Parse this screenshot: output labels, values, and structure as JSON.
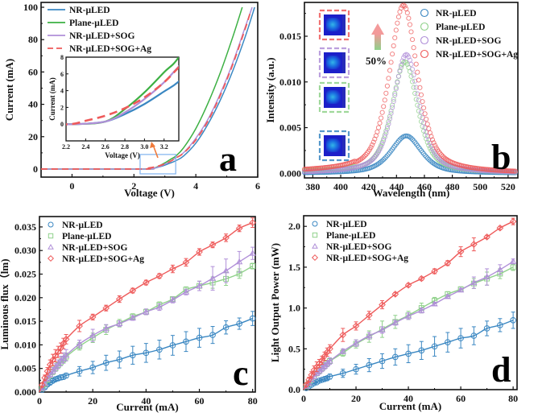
{
  "figure": {
    "panels": [
      "a",
      "b",
      "c",
      "d"
    ]
  },
  "colors": {
    "NR-μLED": "#3a87c2",
    "Plane-μLED": "#3cb043",
    "NR-μLED+SOG": "#b08fd8",
    "NR-μLED+SOG+Ag": "#ee5a5a",
    "Plane-μLED-light": "#8fd18a",
    "highlight_box": "#7fb2ef",
    "arrow": "#f07a3a"
  },
  "chart_data": [
    {
      "panel": "a",
      "type": "line",
      "title": "",
      "xlabel": "Voltage (V)",
      "ylabel": "Current (mA)",
      "xlim": [
        -1,
        6
      ],
      "ylim": [
        -5,
        103
      ],
      "xticks": [
        0,
        2,
        4,
        6
      ],
      "yticks": [
        0,
        20,
        40,
        60,
        80,
        100
      ],
      "legend_position": "top-left",
      "panel_label": "a",
      "series": [
        {
          "name": "NR-μLED",
          "style": "solid",
          "x": [
            -1,
            2.3,
            2.6,
            2.8,
            3.0,
            3.2,
            3.35,
            3.6,
            4.0,
            4.4,
            4.8,
            5.2,
            5.6,
            5.9
          ],
          "y": [
            0,
            0,
            0.3,
            1.2,
            2.4,
            3.9,
            5.1,
            8,
            16,
            28,
            43,
            61,
            82,
            100
          ]
        },
        {
          "name": "Plane-μLED",
          "style": "solid",
          "x": [
            -1,
            2.3,
            2.6,
            2.8,
            3.0,
            3.2,
            3.35,
            3.6,
            4.0,
            4.4,
            4.8,
            5.2,
            5.5
          ],
          "y": [
            0,
            0,
            0.3,
            1.8,
            3.8,
            6.2,
            8,
            13,
            25,
            41,
            60,
            82,
            100
          ]
        },
        {
          "name": "NR-μLED+SOG",
          "style": "solid",
          "x": [
            -1,
            2.3,
            2.6,
            2.8,
            3.0,
            3.2,
            3.35,
            3.6,
            4.0,
            4.4,
            4.8,
            5.2,
            5.6,
            5.82
          ],
          "y": [
            0,
            0,
            0.3,
            1.4,
            3.0,
            5.0,
            6.9,
            10,
            19,
            31,
            47,
            66,
            88,
            100
          ]
        },
        {
          "name": "NR-μLED+SOG+Ag",
          "style": "dashed",
          "x": [
            -1,
            2.25,
            2.4,
            2.6,
            2.8,
            3.0,
            3.2,
            3.35,
            3.6,
            4.0,
            4.4,
            4.8,
            5.2,
            5.6,
            5.78
          ],
          "y": [
            0,
            0,
            0.4,
            1.0,
            1.9,
            3.2,
            5.0,
            6.8,
            9.8,
            18,
            30,
            46,
            65,
            87,
            98
          ]
        }
      ],
      "highlight_box": {
        "x": [
          2.2,
          3.35
        ],
        "y": [
          -2,
          8
        ]
      },
      "inset": {
        "xlabel": "Voltage (V)",
        "ylabel": "Current (mA)",
        "xlim": [
          2.2,
          3.35
        ],
        "ylim": [
          -2,
          8
        ],
        "xticks": [
          2.2,
          2.4,
          2.6,
          2.8,
          3.0,
          3.2
        ],
        "xtick_labels": [
          "2.2",
          "2.4",
          "2.6",
          "2.8",
          "3.0",
          "3.2"
        ],
        "yticks": [
          0,
          2,
          4,
          6,
          8
        ]
      }
    },
    {
      "panel": "b",
      "type": "scatter",
      "title": "",
      "xlabel": "Wavelength (nm)",
      "ylabel": "Intensity (a.u.)",
      "xlim": [
        374,
        527
      ],
      "ylim": [
        -0.0005,
        0.0187
      ],
      "xticks": [
        380,
        400,
        420,
        440,
        460,
        480,
        500,
        520
      ],
      "yticks": [
        0.0,
        0.005,
        0.01,
        0.015
      ],
      "ytick_labels": [
        "0.000",
        "0.005",
        "0.010",
        "0.015"
      ],
      "legend_position": "top-right",
      "panel_label": "b",
      "annotation": "50%",
      "series": [
        {
          "name": "NR-μLED",
          "marker": "circle",
          "peak_nm": 447,
          "peak": 0.0041,
          "fwhm": 26
        },
        {
          "name": "Plane-μLED",
          "marker": "circle",
          "peak_nm": 446,
          "peak": 0.0122,
          "fwhm": 22
        },
        {
          "name": "NR-μLED+SOG",
          "marker": "circle",
          "peak_nm": 447,
          "peak": 0.013,
          "fwhm": 22
        },
        {
          "name": "NR-μLED+SOG+Ag",
          "marker": "circle",
          "peak_nm": 445,
          "peak": 0.0184,
          "fwhm": 24
        }
      ],
      "insets": [
        "NR-μLED+SOG+Ag",
        "NR-μLED+SOG",
        "Plane-μLED",
        "NR-μLED"
      ]
    },
    {
      "panel": "c",
      "type": "scatter",
      "title": "",
      "xlabel": "Current (mA)",
      "ylabel": "Luminous flux（lm)",
      "xlim": [
        0,
        81
      ],
      "ylim": [
        0,
        0.0372
      ],
      "xticks": [
        0,
        20,
        40,
        60,
        80
      ],
      "yticks": [
        0.0,
        0.005,
        0.01,
        0.015,
        0.02,
        0.025,
        0.03,
        0.035
      ],
      "ytick_labels": [
        "0.000",
        "0.005",
        "0.010",
        "0.015",
        "0.020",
        "0.025",
        "0.030",
        "0.035"
      ],
      "legend_position": "top-left",
      "panel_label": "c",
      "x": [
        1,
        2,
        3,
        4,
        5,
        6,
        7,
        8,
        9,
        10,
        15,
        20,
        25,
        30,
        35,
        40,
        45,
        50,
        55,
        60,
        65,
        70,
        75,
        80
      ],
      "series": [
        {
          "name": "NR-μLED",
          "marker": "circle",
          "y": [
            0.0005,
            0.001,
            0.0016,
            0.002,
            0.0024,
            0.0027,
            0.0029,
            0.0031,
            0.0032,
            0.0035,
            0.0044,
            0.0052,
            0.0062,
            0.0069,
            0.0078,
            0.0083,
            0.009,
            0.0099,
            0.0107,
            0.0115,
            0.0121,
            0.0137,
            0.0145,
            0.0156
          ],
          "err": [
            0.0002,
            0.0003,
            0.0003,
            0.0004,
            0.0004,
            0.0004,
            0.0004,
            0.0005,
            0.0005,
            0.0005,
            0.001,
            0.0013,
            0.0016,
            0.0018,
            0.0019,
            0.002,
            0.002,
            0.0021,
            0.0021,
            0.002,
            0.0018,
            0.0014,
            0.0012,
            0.0015
          ]
        },
        {
          "name": "Plane-μLED",
          "marker": "square",
          "y": [
            0.0008,
            0.0017,
            0.0026,
            0.0035,
            0.0043,
            0.005,
            0.0057,
            0.0063,
            0.0069,
            0.0075,
            0.0097,
            0.0115,
            0.0132,
            0.0146,
            0.016,
            0.017,
            0.0185,
            0.0197,
            0.0217,
            0.0225,
            0.0232,
            0.024,
            0.0251,
            0.0267
          ],
          "err": [
            0.0003,
            0.0004,
            0.0005,
            0.0005,
            0.0006,
            0.0006,
            0.0007,
            0.0007,
            0.0007,
            0.0008,
            0.0008,
            0.001,
            0.001,
            0.0008,
            0.0006,
            0.0006,
            0.0006,
            0.0005,
            0.0006,
            0.001,
            0.0012,
            0.0014,
            0.001,
            0.0006
          ]
        },
        {
          "name": "NR-μLED+SOG",
          "marker": "triangle",
          "y": [
            0.0008,
            0.0018,
            0.0028,
            0.0037,
            0.0045,
            0.0052,
            0.0059,
            0.0066,
            0.0072,
            0.0078,
            0.0102,
            0.012,
            0.0135,
            0.0145,
            0.0157,
            0.017,
            0.018,
            0.0195,
            0.0212,
            0.0225,
            0.0241,
            0.0257,
            0.0276,
            0.0294
          ],
          "err": [
            0.0003,
            0.0004,
            0.0005,
            0.0006,
            0.0007,
            0.0008,
            0.0009,
            0.001,
            0.0011,
            0.0012,
            0.0008,
            0.0013,
            0.0008,
            0.0006,
            0.0005,
            0.0006,
            0.0007,
            0.0006,
            0.0006,
            0.001,
            0.0025,
            0.0025,
            0.0022,
            0.0013
          ]
        },
        {
          "name": "NR-μLED+SOG+Ag",
          "marker": "diamond",
          "y": [
            0.0015,
            0.003,
            0.0044,
            0.0058,
            0.0068,
            0.0077,
            0.0085,
            0.0093,
            0.0103,
            0.0112,
            0.014,
            0.0159,
            0.0178,
            0.0197,
            0.0215,
            0.0232,
            0.0246,
            0.0261,
            0.0275,
            0.0297,
            0.0312,
            0.0327,
            0.0347,
            0.0359
          ],
          "err": [
            0.0004,
            0.0006,
            0.0008,
            0.001,
            0.0012,
            0.0013,
            0.0012,
            0.0011,
            0.0011,
            0.001,
            0.0012,
            0.0006,
            0.0006,
            0.0007,
            0.0005,
            0.0005,
            0.0005,
            0.0008,
            0.0008,
            0.0007,
            0.0006,
            0.0008,
            0.0007,
            0.001
          ]
        }
      ]
    },
    {
      "panel": "d",
      "type": "scatter",
      "title": "",
      "xlabel": "Current (mA)",
      "ylabel": "Light Output Power (mW)",
      "xlim": [
        0,
        81.5
      ],
      "ylim": [
        0,
        2.13
      ],
      "xticks": [
        0,
        20,
        40,
        60,
        80
      ],
      "yticks": [
        0.0,
        0.5,
        1.0,
        1.5,
        2.0
      ],
      "ytick_labels": [
        "0.0",
        "0.5",
        "1.0",
        "1.5",
        "2.0"
      ],
      "legend_position": "top-left",
      "panel_label": "d",
      "x": [
        1,
        2,
        3,
        4,
        5,
        6,
        7,
        8,
        9,
        10,
        15,
        20,
        25,
        30,
        35,
        40,
        45,
        50,
        55,
        60,
        65,
        70,
        75,
        80
      ],
      "series": [
        {
          "name": "NR-μLED",
          "marker": "circle",
          "y": [
            0.02,
            0.04,
            0.06,
            0.08,
            0.09,
            0.11,
            0.12,
            0.13,
            0.14,
            0.16,
            0.2,
            0.25,
            0.3,
            0.35,
            0.4,
            0.44,
            0.48,
            0.53,
            0.58,
            0.63,
            0.66,
            0.75,
            0.79,
            0.85
          ],
          "err": [
            0.01,
            0.01,
            0.01,
            0.01,
            0.01,
            0.01,
            0.01,
            0.02,
            0.02,
            0.03,
            0.05,
            0.06,
            0.08,
            0.09,
            0.1,
            0.11,
            0.11,
            0.12,
            0.12,
            0.12,
            0.11,
            0.09,
            0.08,
            0.1
          ]
        },
        {
          "name": "Plane-μLED",
          "marker": "square",
          "y": [
            0.04,
            0.08,
            0.12,
            0.16,
            0.2,
            0.23,
            0.26,
            0.29,
            0.32,
            0.35,
            0.45,
            0.56,
            0.65,
            0.74,
            0.83,
            0.91,
            1.0,
            1.09,
            1.17,
            1.23,
            1.3,
            1.36,
            1.42,
            1.5
          ],
          "err": [
            0.01,
            0.02,
            0.02,
            0.03,
            0.03,
            0.03,
            0.03,
            0.03,
            0.03,
            0.03,
            0.04,
            0.05,
            0.07,
            0.1,
            0.08,
            0.05,
            0.06,
            0.04,
            0.03,
            0.03,
            0.06,
            0.08,
            0.06,
            0.04
          ]
        },
        {
          "name": "NR-μLED+SOG",
          "marker": "triangle",
          "y": [
            0.04,
            0.08,
            0.12,
            0.16,
            0.2,
            0.23,
            0.26,
            0.29,
            0.32,
            0.35,
            0.47,
            0.57,
            0.66,
            0.73,
            0.82,
            0.9,
            0.97,
            1.05,
            1.14,
            1.22,
            1.31,
            1.38,
            1.47,
            1.57
          ],
          "err": [
            0.01,
            0.02,
            0.02,
            0.03,
            0.03,
            0.04,
            0.04,
            0.04,
            0.04,
            0.04,
            0.03,
            0.04,
            0.04,
            0.04,
            0.03,
            0.04,
            0.03,
            0.02,
            0.02,
            0.02,
            0.07,
            0.1,
            0.06,
            0.03
          ]
        },
        {
          "name": "NR-μLED+SOG+Ag",
          "marker": "diamond",
          "y": [
            0.06,
            0.12,
            0.18,
            0.24,
            0.28,
            0.32,
            0.36,
            0.41,
            0.46,
            0.5,
            0.67,
            0.78,
            0.91,
            1.04,
            1.17,
            1.28,
            1.36,
            1.45,
            1.55,
            1.69,
            1.78,
            1.87,
            1.98,
            2.06
          ],
          "err": [
            0.02,
            0.03,
            0.04,
            0.05,
            0.06,
            0.05,
            0.05,
            0.05,
            0.05,
            0.05,
            0.08,
            0.05,
            0.05,
            0.05,
            0.02,
            0.02,
            0.02,
            0.03,
            0.03,
            0.06,
            0.08,
            0.02,
            0.02,
            0.04
          ]
        }
      ]
    }
  ]
}
